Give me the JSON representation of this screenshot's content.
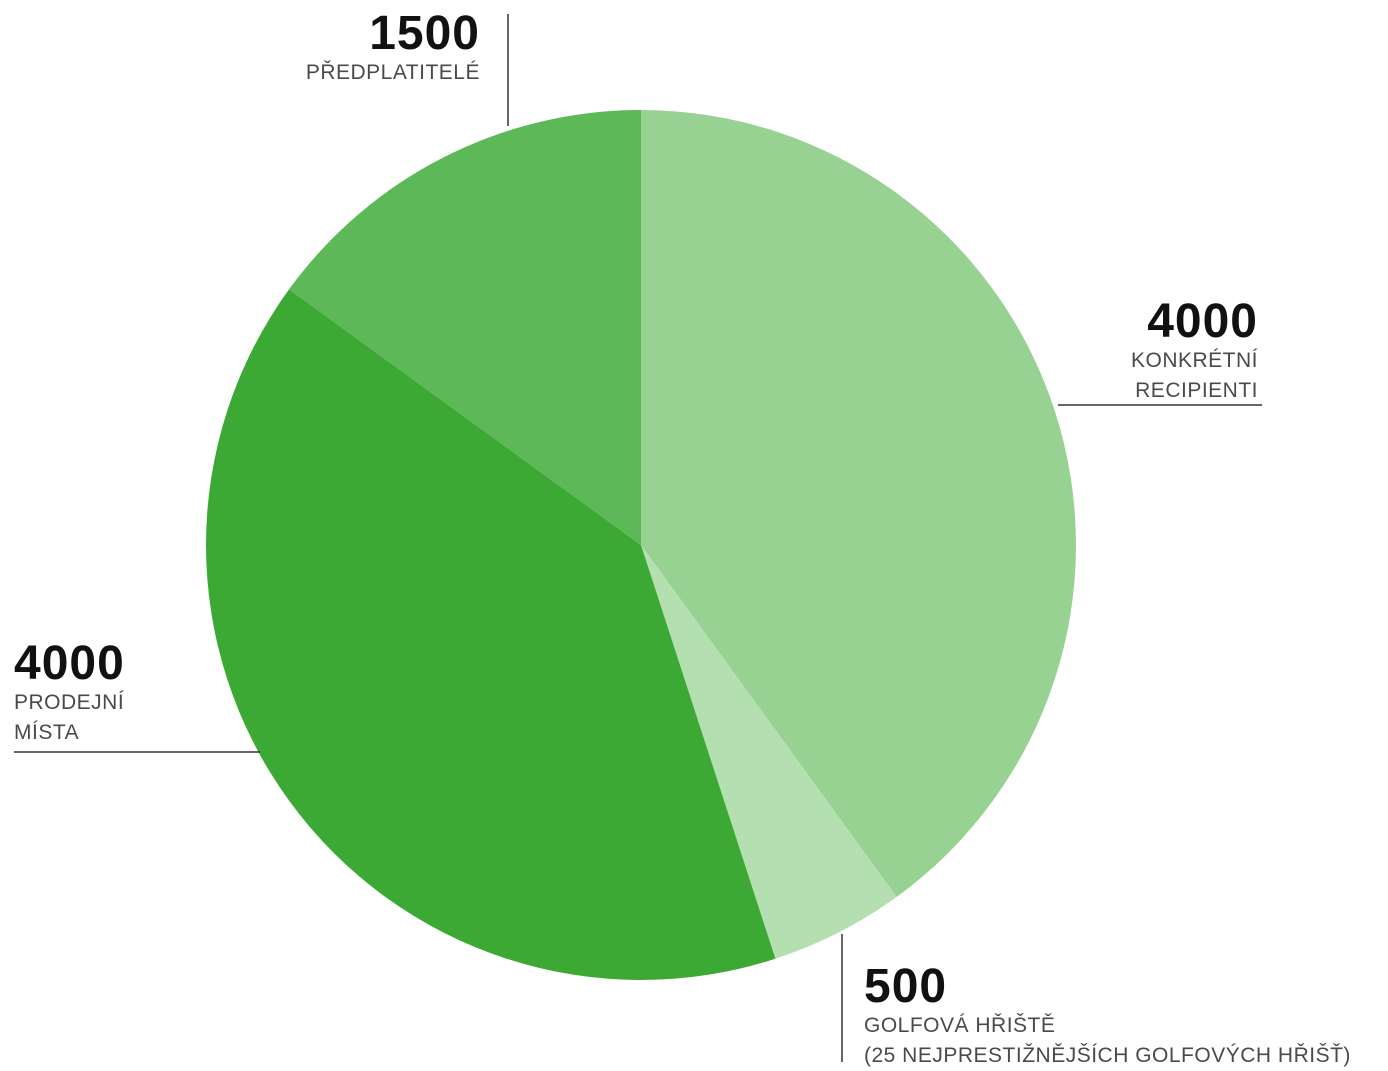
{
  "chart_data": {
    "type": "pie",
    "slices": [
      {
        "value": 4000,
        "label_lines": [
          "KONKRÉTNÍ",
          "RECIPIENTI"
        ],
        "color": "#98d293"
      },
      {
        "value": 500,
        "label_lines": [
          "GOLFOVÁ HŘIŠTĚ",
          "(25 NEJPRESTIŽNĚJŠÍCH GOLFOVÝCH HŘIŠŤ)"
        ],
        "color": "#b3dfb1"
      },
      {
        "value": 4000,
        "label_lines": [
          "PRODEJNÍ",
          "MÍSTA"
        ],
        "color": "#3ca934"
      },
      {
        "value": 1500,
        "label_lines": [
          "PŘEDPLATITELÉ"
        ],
        "color": "#5db858"
      }
    ],
    "start": "top",
    "direction": "clockwise",
    "leader_color": "#333333"
  }
}
